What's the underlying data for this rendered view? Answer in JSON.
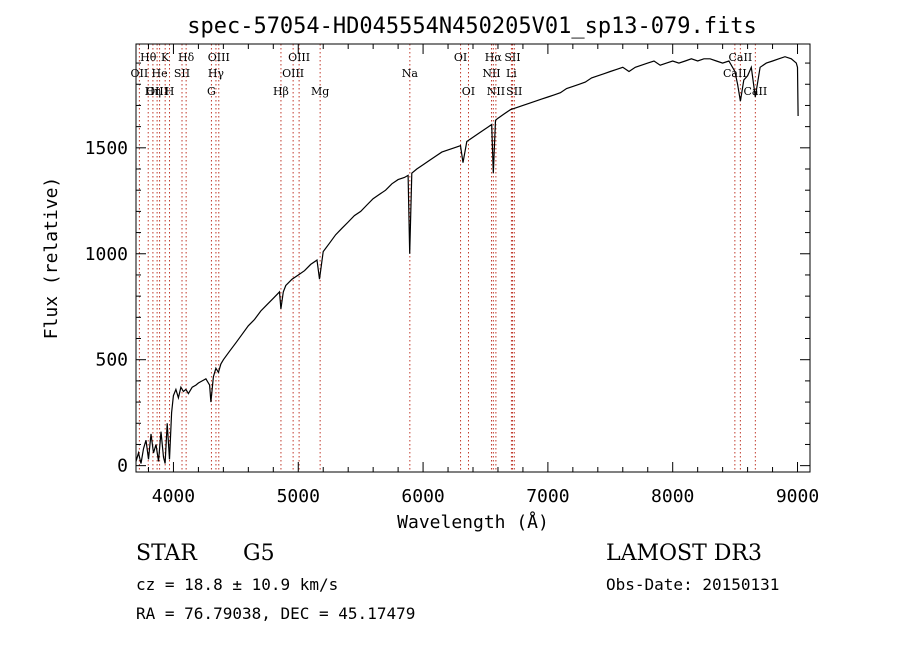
{
  "chart_data": {
    "type": "line",
    "title": "spec-57054-HD045554N450205V01_sp13-079.fits",
    "xlabel": "Wavelength (Å)",
    "ylabel": "Flux (relative)",
    "xlim": [
      3700,
      9100
    ],
    "ylim": [
      -30,
      1990
    ],
    "x_ticks": [
      4000,
      5000,
      6000,
      7000,
      8000,
      9000
    ],
    "y_ticks": [
      0,
      500,
      1000,
      1500
    ],
    "x_minor_step": 200,
    "y_minor_step": 100,
    "grid": false,
    "series": [
      {
        "name": "flux",
        "color": "#000000",
        "x": [
          3700,
          3720,
          3740,
          3760,
          3780,
          3800,
          3820,
          3840,
          3860,
          3880,
          3900,
          3920,
          3933,
          3950,
          3968,
          3985,
          4000,
          4020,
          4040,
          4060,
          4080,
          4100,
          4120,
          4150,
          4180,
          4200,
          4230,
          4260,
          4290,
          4300,
          4320,
          4340,
          4360,
          4380,
          4400,
          4450,
          4500,
          4550,
          4600,
          4650,
          4700,
          4750,
          4800,
          4850,
          4861,
          4880,
          4900,
          4950,
          5000,
          5050,
          5100,
          5150,
          5170,
          5200,
          5250,
          5300,
          5350,
          5400,
          5450,
          5500,
          5550,
          5600,
          5650,
          5700,
          5750,
          5800,
          5850,
          5880,
          5893,
          5910,
          5950,
          6000,
          6050,
          6100,
          6150,
          6200,
          6250,
          6300,
          6320,
          6350,
          6400,
          6450,
          6500,
          6550,
          6563,
          6580,
          6600,
          6650,
          6700,
          6750,
          6800,
          6850,
          6900,
          6950,
          7000,
          7050,
          7100,
          7150,
          7200,
          7250,
          7300,
          7350,
          7400,
          7450,
          7500,
          7550,
          7600,
          7650,
          7700,
          7750,
          7800,
          7850,
          7900,
          7950,
          8000,
          8050,
          8100,
          8150,
          8200,
          8250,
          8300,
          8350,
          8400,
          8450,
          8498,
          8520,
          8542,
          8570,
          8600,
          8630,
          8662,
          8700,
          8750,
          8800,
          8850,
          8900,
          8950,
          8990,
          9000,
          9005
        ],
        "values": [
          20,
          60,
          10,
          80,
          120,
          30,
          150,
          60,
          100,
          20,
          160,
          40,
          10,
          200,
          30,
          250,
          330,
          360,
          320,
          370,
          350,
          360,
          340,
          370,
          380,
          390,
          400,
          410,
          380,
          300,
          420,
          460,
          440,
          480,
          500,
          540,
          580,
          620,
          660,
          690,
          730,
          760,
          790,
          820,
          740,
          820,
          850,
          880,
          900,
          920,
          950,
          970,
          880,
          1010,
          1050,
          1090,
          1120,
          1150,
          1180,
          1200,
          1230,
          1260,
          1280,
          1300,
          1330,
          1350,
          1360,
          1370,
          1000,
          1380,
          1400,
          1420,
          1440,
          1460,
          1480,
          1490,
          1500,
          1510,
          1430,
          1530,
          1550,
          1570,
          1590,
          1610,
          1380,
          1630,
          1640,
          1660,
          1680,
          1690,
          1700,
          1710,
          1720,
          1730,
          1740,
          1750,
          1760,
          1780,
          1790,
          1800,
          1810,
          1830,
          1840,
          1850,
          1860,
          1870,
          1880,
          1860,
          1880,
          1890,
          1900,
          1910,
          1890,
          1900,
          1910,
          1900,
          1910,
          1920,
          1910,
          1920,
          1920,
          1910,
          1900,
          1910,
          1860,
          1800,
          1720,
          1820,
          1840,
          1880,
          1740,
          1880,
          1900,
          1910,
          1920,
          1930,
          1920,
          1900,
          1880,
          1650
        ]
      }
    ],
    "lines": [
      {
        "name": "Hθ",
        "wl": 3797.9,
        "row": 1
      },
      {
        "name": "OII",
        "wl": 3727.1,
        "row": 2
      },
      {
        "name": "OIII",
        "wl": 3869.1,
        "row": 3
      },
      {
        "name": "K",
        "wl": 3933.7,
        "row": 1
      },
      {
        "name": "He",
        "wl": 3889.0,
        "row": 2
      },
      {
        "name": "Hη",
        "wl": 3835.4,
        "row": 3
      },
      {
        "name": "SII",
        "wl": 4068.6,
        "row": 2
      },
      {
        "name": "H",
        "wl": 3968.5,
        "row": 3
      },
      {
        "name": "Hδ",
        "wl": 4101.7,
        "row": 1
      },
      {
        "name": "OIII",
        "wl": 4363.2,
        "row": 1
      },
      {
        "name": "Hγ",
        "wl": 4340.5,
        "row": 2
      },
      {
        "name": "G",
        "wl": 4304.4,
        "row": 3
      },
      {
        "name": "Hβ",
        "wl": 4861.3,
        "row": 3
      },
      {
        "name": "OIII",
        "wl": 5006.8,
        "row": 1
      },
      {
        "name": "OIII",
        "wl": 4958.9,
        "row": 2
      },
      {
        "name": "Mg",
        "wl": 5175.3,
        "row": 3
      },
      {
        "name": "Na",
        "wl": 5894.0,
        "row": 2
      },
      {
        "name": "OI",
        "wl": 6300.3,
        "row": 1
      },
      {
        "name": "OI",
        "wl": 6363.8,
        "row": 3
      },
      {
        "name": "Hα",
        "wl": 6562.8,
        "row": 1
      },
      {
        "name": "NII",
        "wl": 6548.1,
        "row": 2
      },
      {
        "name": "NII",
        "wl": 6583.4,
        "row": 3
      },
      {
        "name": "SII",
        "wl": 6716.4,
        "row": 1
      },
      {
        "name": "Li",
        "wl": 6707.8,
        "row": 2
      },
      {
        "name": "SII",
        "wl": 6730.8,
        "row": 3
      },
      {
        "name": "CaII",
        "wl": 8542.1,
        "row": 1
      },
      {
        "name": "CaII",
        "wl": 8498.0,
        "row": 2
      },
      {
        "name": "CaII",
        "wl": 8662.1,
        "row": 3
      }
    ]
  },
  "info": {
    "class": "STAR",
    "subclass": "G5",
    "survey": "LAMOST DR3",
    "cz": "cz = 18.8 ± 10.9 km/s",
    "obs_date": "Obs-Date: 20150131",
    "coords": "RA =  76.79038, DEC =  45.17479"
  },
  "colors": {
    "axis": "#000000",
    "line_marker": "#c0392b",
    "spectrum": "#000000"
  }
}
